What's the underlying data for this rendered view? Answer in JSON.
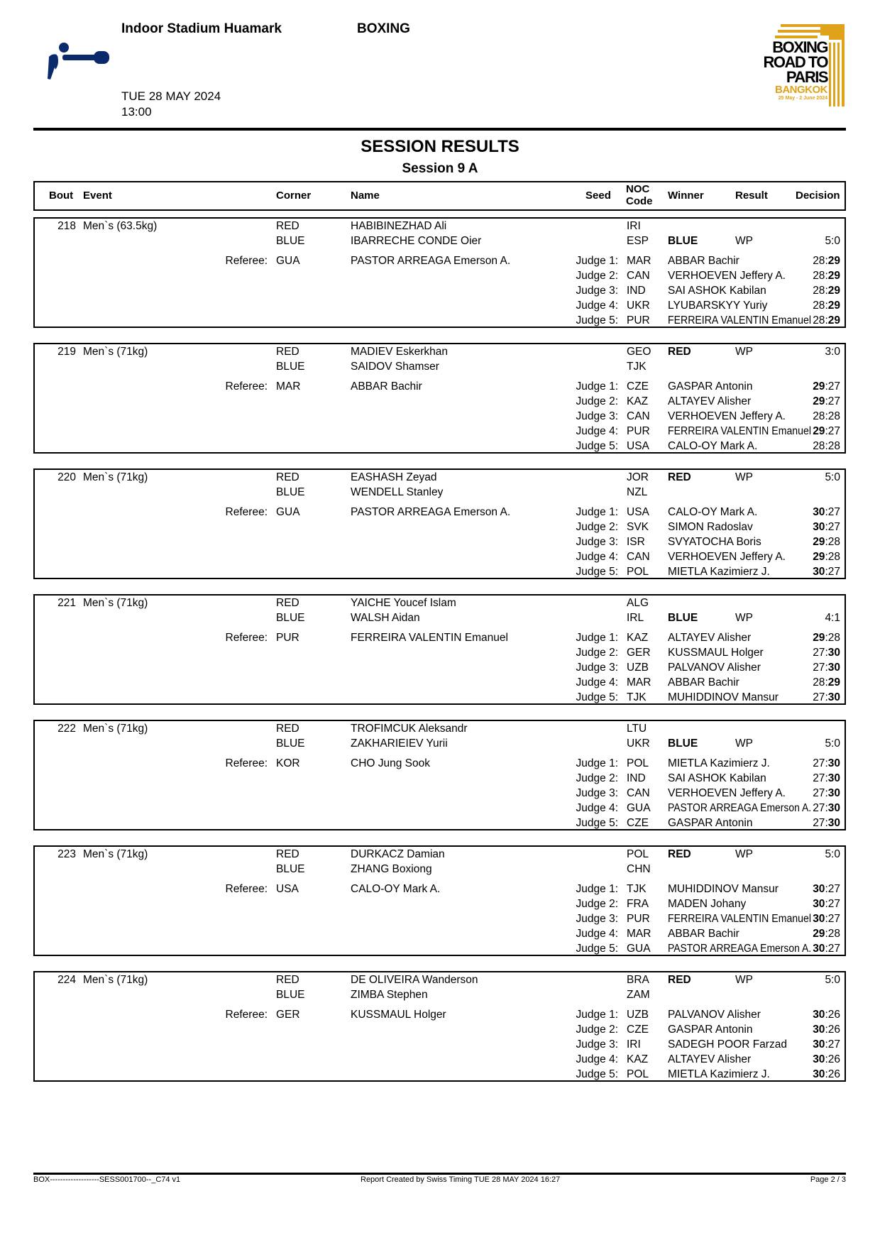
{
  "header": {
    "venue": "Indoor Stadium Huamark",
    "sport": "BOXING",
    "date": "TUE 28 MAY 2024",
    "time": "13:00",
    "logo_text": [
      "BOXING",
      "ROAD TO",
      "PARIS",
      "BANGKOK",
      "25 May - 2 June 2024"
    ],
    "pictogram": "boxing-pictogram-icon"
  },
  "title": "SESSION RESULTS",
  "subtitle": "Session 9 A",
  "columns": {
    "bout": "Bout",
    "event": "Event",
    "corner": "Corner",
    "name": "Name",
    "seed": "Seed",
    "noc": "NOC Code",
    "winner": "Winner",
    "result": "Result",
    "decision": "Decision"
  },
  "labels": {
    "referee": "Referee:",
    "red": "RED",
    "blue": "BLUE"
  },
  "colors": {
    "pictogram": "#0b2a6b",
    "logo_gold": "#e0a21a",
    "text": "#000000"
  },
  "bouts": [
    {
      "bout": "218",
      "event": "Men`s (63.5kg)",
      "red": {
        "name": "HABIBINEZHAD Ali",
        "noc": "IRI"
      },
      "blue": {
        "name": "IBARRECHE CONDE Oier",
        "noc": "ESP"
      },
      "winner": "BLUE",
      "result": "WP",
      "decision": "5:0",
      "referee": {
        "noc": "GUA",
        "name": "PASTOR ARREAGA Emerson A."
      },
      "judges": [
        {
          "label": "Judge 1:",
          "noc": "MAR",
          "name": "ABBAR Bachir",
          "red": "28",
          "blue": "29"
        },
        {
          "label": "Judge 2:",
          "noc": "CAN",
          "name": "VERHOEVEN Jeffery A.",
          "red": "28",
          "blue": "29"
        },
        {
          "label": "Judge 3:",
          "noc": "IND",
          "name": "SAI ASHOK Kabilan",
          "red": "28",
          "blue": "29"
        },
        {
          "label": "Judge 4:",
          "noc": "UKR",
          "name": "LYUBARSKYY Yuriy",
          "red": "28",
          "blue": "29"
        },
        {
          "label": "Judge 5:",
          "noc": "PUR",
          "name": "FERREIRA VALENTIN Emanuel",
          "red": "28",
          "blue": "29"
        }
      ]
    },
    {
      "bout": "219",
      "event": "Men`s (71kg)",
      "red": {
        "name": "MADIEV Eskerkhan",
        "noc": "GEO"
      },
      "blue": {
        "name": "SAIDOV Shamser",
        "noc": "TJK"
      },
      "winner": "RED",
      "result": "WP",
      "decision": "3:0",
      "referee": {
        "noc": "MAR",
        "name": "ABBAR Bachir"
      },
      "judges": [
        {
          "label": "Judge 1:",
          "noc": "CZE",
          "name": "GASPAR Antonin",
          "red": "29",
          "blue": "27"
        },
        {
          "label": "Judge 2:",
          "noc": "KAZ",
          "name": "ALTAYEV Alisher",
          "red": "29",
          "blue": "27"
        },
        {
          "label": "Judge 3:",
          "noc": "CAN",
          "name": "VERHOEVEN Jeffery A.",
          "red": "28",
          "blue": "28"
        },
        {
          "label": "Judge 4:",
          "noc": "PUR",
          "name": "FERREIRA VALENTIN Emanuel",
          "red": "29",
          "blue": "27"
        },
        {
          "label": "Judge 5:",
          "noc": "USA",
          "name": "CALO-OY Mark A.",
          "red": "28",
          "blue": "28"
        }
      ]
    },
    {
      "bout": "220",
      "event": "Men`s (71kg)",
      "red": {
        "name": "EASHASH Zeyad",
        "noc": "JOR"
      },
      "blue": {
        "name": "WENDELL Stanley",
        "noc": "NZL"
      },
      "winner": "RED",
      "result": "WP",
      "decision": "5:0",
      "referee": {
        "noc": "GUA",
        "name": "PASTOR ARREAGA Emerson A."
      },
      "judges": [
        {
          "label": "Judge 1:",
          "noc": "USA",
          "name": "CALO-OY Mark A.",
          "red": "30",
          "blue": "27"
        },
        {
          "label": "Judge 2:",
          "noc": "SVK",
          "name": "SIMON Radoslav",
          "red": "30",
          "blue": "27"
        },
        {
          "label": "Judge 3:",
          "noc": "ISR",
          "name": "SVYATOCHA Boris",
          "red": "29",
          "blue": "28"
        },
        {
          "label": "Judge 4:",
          "noc": "CAN",
          "name": "VERHOEVEN Jeffery A.",
          "red": "29",
          "blue": "28"
        },
        {
          "label": "Judge 5:",
          "noc": "POL",
          "name": "MIETLA Kazimierz J.",
          "red": "30",
          "blue": "27"
        }
      ]
    },
    {
      "bout": "221",
      "event": "Men`s (71kg)",
      "red": {
        "name": "YAICHE Youcef  Islam",
        "noc": "ALG"
      },
      "blue": {
        "name": "WALSH Aidan",
        "noc": "IRL"
      },
      "winner": "BLUE",
      "result": "WP",
      "decision": "4:1",
      "referee": {
        "noc": "PUR",
        "name": "FERREIRA VALENTIN Emanuel"
      },
      "judges": [
        {
          "label": "Judge 1:",
          "noc": "KAZ",
          "name": "ALTAYEV Alisher",
          "red": "29",
          "blue": "28"
        },
        {
          "label": "Judge 2:",
          "noc": "GER",
          "name": "KUSSMAUL Holger",
          "red": "27",
          "blue": "30"
        },
        {
          "label": "Judge 3:",
          "noc": "UZB",
          "name": "PALVANOV Alisher",
          "red": "27",
          "blue": "30"
        },
        {
          "label": "Judge 4:",
          "noc": "MAR",
          "name": "ABBAR Bachir",
          "red": "28",
          "blue": "29"
        },
        {
          "label": "Judge 5:",
          "noc": "TJK",
          "name": "MUHIDDINOV Mansur",
          "red": "27",
          "blue": "30"
        }
      ]
    },
    {
      "bout": "222",
      "event": "Men`s (71kg)",
      "red": {
        "name": "TROFIMCUK Aleksandr",
        "noc": "LTU"
      },
      "blue": {
        "name": "ZAKHARIEIEV Yurii",
        "noc": "UKR"
      },
      "winner": "BLUE",
      "result": "WP",
      "decision": "5:0",
      "referee": {
        "noc": "KOR",
        "name": "CHO Jung Sook"
      },
      "judges": [
        {
          "label": "Judge 1:",
          "noc": "POL",
          "name": "MIETLA Kazimierz J.",
          "red": "27",
          "blue": "30"
        },
        {
          "label": "Judge 2:",
          "noc": "IND",
          "name": "SAI ASHOK Kabilan",
          "red": "27",
          "blue": "30"
        },
        {
          "label": "Judge 3:",
          "noc": "CAN",
          "name": "VERHOEVEN Jeffery A.",
          "red": "27",
          "blue": "30"
        },
        {
          "label": "Judge 4:",
          "noc": "GUA",
          "name": "PASTOR ARREAGA Emerson A.",
          "red": "27",
          "blue": "30"
        },
        {
          "label": "Judge 5:",
          "noc": "CZE",
          "name": "GASPAR Antonin",
          "red": "27",
          "blue": "30"
        }
      ]
    },
    {
      "bout": "223",
      "event": "Men`s (71kg)",
      "red": {
        "name": "DURKACZ Damian",
        "noc": "POL"
      },
      "blue": {
        "name": "ZHANG Boxiong",
        "noc": "CHN"
      },
      "winner": "RED",
      "result": "WP",
      "decision": "5:0",
      "referee": {
        "noc": "USA",
        "name": "CALO-OY Mark A."
      },
      "judges": [
        {
          "label": "Judge 1:",
          "noc": "TJK",
          "name": "MUHIDDINOV Mansur",
          "red": "30",
          "blue": "27"
        },
        {
          "label": "Judge 2:",
          "noc": "FRA",
          "name": "MADEN Johany",
          "red": "30",
          "blue": "27"
        },
        {
          "label": "Judge 3:",
          "noc": "PUR",
          "name": "FERREIRA VALENTIN Emanuel",
          "red": "30",
          "blue": "27"
        },
        {
          "label": "Judge 4:",
          "noc": "MAR",
          "name": "ABBAR Bachir",
          "red": "29",
          "blue": "28"
        },
        {
          "label": "Judge 5:",
          "noc": "GUA",
          "name": "PASTOR ARREAGA Emerson A.",
          "red": "30",
          "blue": "27"
        }
      ]
    },
    {
      "bout": "224",
      "event": "Men`s (71kg)",
      "red": {
        "name": "DE OLIVEIRA Wanderson",
        "noc": "BRA"
      },
      "blue": {
        "name": "ZIMBA Stephen",
        "noc": "ZAM"
      },
      "winner": "RED",
      "result": "WP",
      "decision": "5:0",
      "referee": {
        "noc": "GER",
        "name": "KUSSMAUL Holger"
      },
      "judges": [
        {
          "label": "Judge 1:",
          "noc": "UZB",
          "name": "PALVANOV Alisher",
          "red": "30",
          "blue": "26"
        },
        {
          "label": "Judge 2:",
          "noc": "CZE",
          "name": "GASPAR Antonin",
          "red": "30",
          "blue": "26"
        },
        {
          "label": "Judge 3:",
          "noc": "IRI",
          "name": "SADEGH POOR Farzad",
          "red": "30",
          "blue": "27"
        },
        {
          "label": "Judge 4:",
          "noc": "KAZ",
          "name": "ALTAYEV Alisher",
          "red": "30",
          "blue": "26"
        },
        {
          "label": "Judge 5:",
          "noc": "POL",
          "name": "MIETLA Kazimierz J.",
          "red": "30",
          "blue": "26"
        }
      ]
    }
  ],
  "footer": {
    "code": "BOX-------------------SESS001700--_C74 v1",
    "created": "Report Created by Swiss Timing  TUE 28 MAY 2024 16:27",
    "page": "Page 2 / 3"
  }
}
